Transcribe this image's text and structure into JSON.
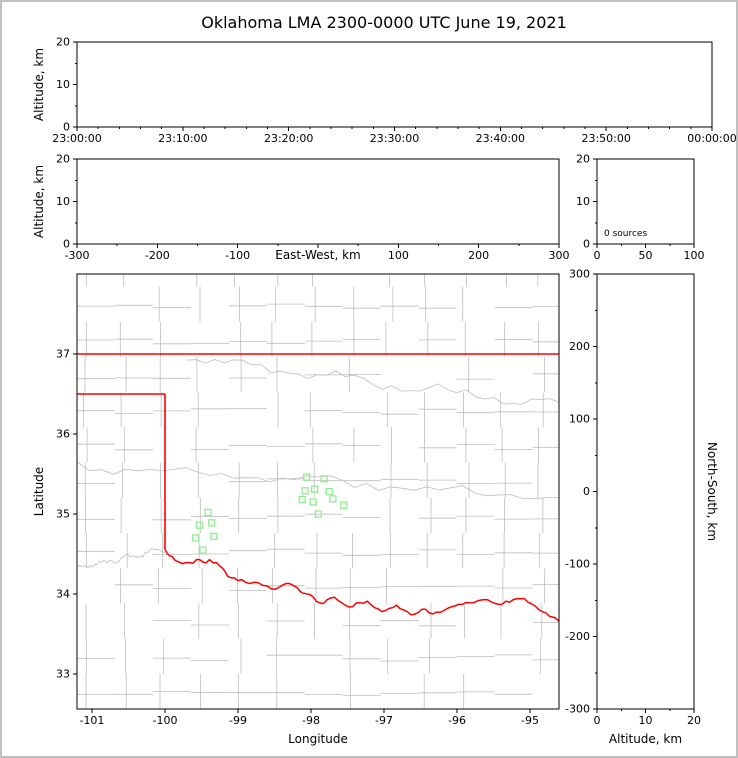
{
  "title": "Oklahoma LMA 2300-0000 UTC June 19, 2021",
  "colors": {
    "background": "#ffffff",
    "frame": "#c0c0c0",
    "axis": "#000000",
    "county": "#bdbdbd",
    "state_border": "#ff0000",
    "river": "#ff0000",
    "station": "#90ee90"
  },
  "chart_data": [
    {
      "id": "time-height",
      "type": "scatter",
      "points": [],
      "ylabel": "Altitude, km",
      "ylim": [
        0,
        20
      ],
      "yticks": [
        0,
        10,
        20
      ],
      "yminor": [
        5,
        15
      ],
      "x_tick_labels": [
        "23:00:00",
        "23:10:00",
        "23:20:00",
        "23:30:00",
        "23:40:00",
        "23:50:00",
        "00:00:00"
      ],
      "x_minor_between": 4
    },
    {
      "id": "ew-height",
      "type": "scatter",
      "points": [],
      "xlabel": "East-West, km",
      "ylabel": "Altitude, km",
      "xlim": [
        -300,
        300
      ],
      "xticks": [
        -300,
        -200,
        -100,
        0,
        100,
        200,
        300
      ],
      "x_tick_labels": [
        "-300",
        "-200",
        "-100",
        "",
        "100",
        "200",
        "300"
      ],
      "xminor": [
        -250,
        -150,
        -50,
        50,
        150,
        250
      ],
      "ylim": [
        0,
        20
      ],
      "yticks": [
        0,
        10,
        20
      ],
      "yminor": [
        5,
        15
      ]
    },
    {
      "id": "alt-histogram",
      "type": "line",
      "points": [],
      "annotation": "0 sources",
      "xlim": [
        0,
        100
      ],
      "xticks": [
        0,
        50,
        100
      ],
      "x_tick_labels": [
        "0",
        "50",
        "100"
      ],
      "xminor": [
        25,
        75
      ],
      "ylim": [
        0,
        20
      ],
      "yticks": [
        0,
        10,
        20
      ],
      "yminor": [
        5,
        15
      ]
    },
    {
      "id": "plan-view",
      "type": "scatter",
      "xlabel": "Longitude",
      "ylabel": "Latitude",
      "xlim": [
        -101.205,
        -94.603
      ],
      "xticks": [
        -101,
        -100,
        -99,
        -98,
        -97,
        -96,
        -95
      ],
      "x_tick_labels": [
        "-101",
        "-100",
        "-99",
        "-98",
        "-97",
        "-96",
        "-95"
      ],
      "ylim": [
        32.563,
        38.0
      ],
      "yticks": [
        33,
        34,
        35,
        36,
        37
      ],
      "y_tick_labels": [
        "33",
        "34",
        "35",
        "36",
        "37"
      ],
      "stations_lonlat": [
        [
          -98.06,
          35.46
        ],
        [
          -97.82,
          35.44
        ],
        [
          -98.08,
          35.29
        ],
        [
          -97.95,
          35.31
        ],
        [
          -97.75,
          35.28
        ],
        [
          -98.12,
          35.18
        ],
        [
          -97.97,
          35.15
        ],
        [
          -97.7,
          35.19
        ],
        [
          -97.55,
          35.11
        ],
        [
          -97.9,
          35.0
        ],
        [
          -99.41,
          35.02
        ],
        [
          -99.53,
          34.86
        ],
        [
          -99.36,
          34.89
        ],
        [
          -99.58,
          34.7
        ],
        [
          -99.33,
          34.72
        ],
        [
          -99.48,
          34.55
        ]
      ],
      "state_border_segments": [
        [
          [
            -101.205,
            37.0
          ],
          [
            -94.603,
            37.0
          ]
        ],
        [
          [
            -101.205,
            36.5
          ],
          [
            -100.0,
            36.5
          ]
        ],
        [
          [
            -100.0,
            36.5
          ],
          [
            -100.0,
            34.56
          ]
        ]
      ],
      "red_river_lonlat": [
        [
          -100.0,
          34.56
        ],
        [
          -99.94,
          34.48
        ],
        [
          -99.86,
          34.42
        ],
        [
          -99.76,
          34.38
        ],
        [
          -99.66,
          34.39
        ],
        [
          -99.57,
          34.43
        ],
        [
          -99.48,
          34.4
        ],
        [
          -99.39,
          34.43
        ],
        [
          -99.29,
          34.39
        ],
        [
          -99.21,
          34.32
        ],
        [
          -99.14,
          34.22
        ],
        [
          -99.05,
          34.2
        ],
        [
          -98.95,
          34.18
        ],
        [
          -98.84,
          34.13
        ],
        [
          -98.72,
          34.14
        ],
        [
          -98.6,
          34.1
        ],
        [
          -98.49,
          34.06
        ],
        [
          -98.39,
          34.11
        ],
        [
          -98.29,
          34.13
        ],
        [
          -98.19,
          34.08
        ],
        [
          -98.11,
          34.01
        ],
        [
          -98.01,
          33.99
        ],
        [
          -97.93,
          33.91
        ],
        [
          -97.83,
          33.88
        ],
        [
          -97.73,
          33.95
        ],
        [
          -97.63,
          33.92
        ],
        [
          -97.53,
          33.86
        ],
        [
          -97.43,
          33.84
        ],
        [
          -97.33,
          33.89
        ],
        [
          -97.23,
          33.91
        ],
        [
          -97.13,
          33.83
        ],
        [
          -97.03,
          33.78
        ],
        [
          -96.93,
          33.82
        ],
        [
          -96.83,
          33.86
        ],
        [
          -96.73,
          33.8
        ],
        [
          -96.63,
          33.74
        ],
        [
          -96.53,
          33.77
        ],
        [
          -96.43,
          33.81
        ],
        [
          -96.33,
          33.75
        ],
        [
          -96.23,
          33.77
        ],
        [
          -96.13,
          33.82
        ],
        [
          -96.03,
          33.85
        ],
        [
          -95.93,
          33.87
        ],
        [
          -95.83,
          33.89
        ],
        [
          -95.73,
          33.91
        ],
        [
          -95.63,
          33.93
        ],
        [
          -95.53,
          33.9
        ],
        [
          -95.43,
          33.87
        ],
        [
          -95.33,
          33.91
        ],
        [
          -95.23,
          33.93
        ],
        [
          -95.13,
          33.94
        ],
        [
          -95.03,
          33.9
        ],
        [
          -94.93,
          33.85
        ],
        [
          -94.83,
          33.78
        ],
        [
          -94.73,
          33.72
        ],
        [
          -94.6,
          33.66
        ]
      ],
      "county_grid": {
        "seed": 11,
        "lon_step": 0.52,
        "lat_step": 0.44,
        "skip": 0.15,
        "jitter": 0.1
      },
      "gray_rivers": [
        {
          "from": [
            -101.2,
            35.62
          ],
          "to": [
            -94.6,
            35.2
          ],
          "amp": 0.1,
          "seed": 3
        },
        {
          "from": [
            -99.7,
            36.95
          ],
          "to": [
            -94.6,
            36.35
          ],
          "amp": 0.09,
          "seed": 5
        },
        {
          "from": [
            -101.2,
            34.33
          ],
          "to": [
            -100.0,
            34.56
          ],
          "amp": 0.05,
          "seed": 8
        }
      ]
    },
    {
      "id": "ns-height",
      "type": "scatter",
      "points": [],
      "xlabel": "Altitude, km",
      "ylabel": "North-South, km",
      "xlim": [
        0,
        20
      ],
      "xticks": [
        0,
        10,
        20
      ],
      "x_tick_labels": [
        "0",
        "10",
        "20"
      ],
      "xminor": [
        5,
        15
      ],
      "ylim": [
        -300,
        300
      ],
      "yticks": [
        -300,
        -200,
        -100,
        0,
        100,
        200,
        300
      ],
      "y_tick_labels": [
        "-300",
        "-200",
        "-100",
        "0",
        "100",
        "200",
        "300"
      ],
      "yminor": [
        -250,
        -150,
        -50,
        50,
        150,
        250
      ]
    }
  ]
}
